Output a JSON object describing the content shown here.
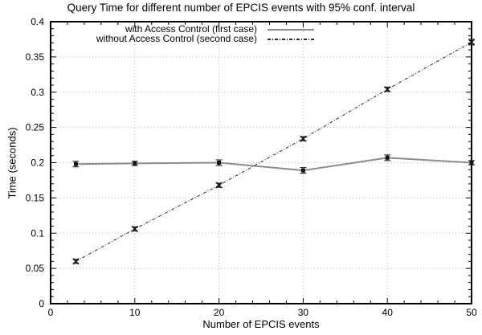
{
  "chart_data": {
    "type": "line",
    "title": "Query Time for different number of EPCIS events with 95% conf. interval",
    "xlabel": "Number of EPCIS events",
    "ylabel": "Time (seconds)",
    "xlim": [
      0,
      50
    ],
    "ylim": [
      0,
      0.4
    ],
    "grid": true,
    "grid_color": "#b3b3b3",
    "border_color": "#000000",
    "legend_position": "top-center-inside",
    "xticks": {
      "values": [
        0,
        10,
        20,
        30,
        40,
        50
      ],
      "labels": [
        "0",
        "10",
        "20",
        "30",
        "40",
        "50"
      ],
      "minor_step": 2
    },
    "yticks": {
      "values": [
        0,
        0.05,
        0.1,
        0.15,
        0.2,
        0.25,
        0.3,
        0.35,
        0.4
      ],
      "labels": [
        "0",
        "0.05",
        "0.1",
        "0.15",
        "0.2",
        "0.25",
        "0.3",
        "0.35",
        "0.4"
      ],
      "minor_step": 0.01
    },
    "series": [
      {
        "name": "with Access Control (first case)",
        "style": "solid",
        "color": "#8c8c8c",
        "marker": "square",
        "marker_color": "#141414",
        "x": [
          3,
          10,
          20,
          30,
          40,
          50
        ],
        "y": [
          0.198,
          0.199,
          0.2,
          0.189,
          0.207,
          0.2
        ],
        "yerr": [
          0.004,
          0.003,
          0.004,
          0.004,
          0.004,
          0.003
        ]
      },
      {
        "name": "without Access Control (second case)",
        "style": "dash-dot",
        "color": "#2a2a2a",
        "marker": "x",
        "marker_color": "#141414",
        "x": [
          3,
          10,
          20,
          30,
          40,
          50
        ],
        "y": [
          0.06,
          0.106,
          0.168,
          0.234,
          0.304,
          0.371
        ],
        "yerr": [
          0.003,
          0.003,
          0.003,
          0.003,
          0.003,
          0.004
        ]
      }
    ]
  }
}
